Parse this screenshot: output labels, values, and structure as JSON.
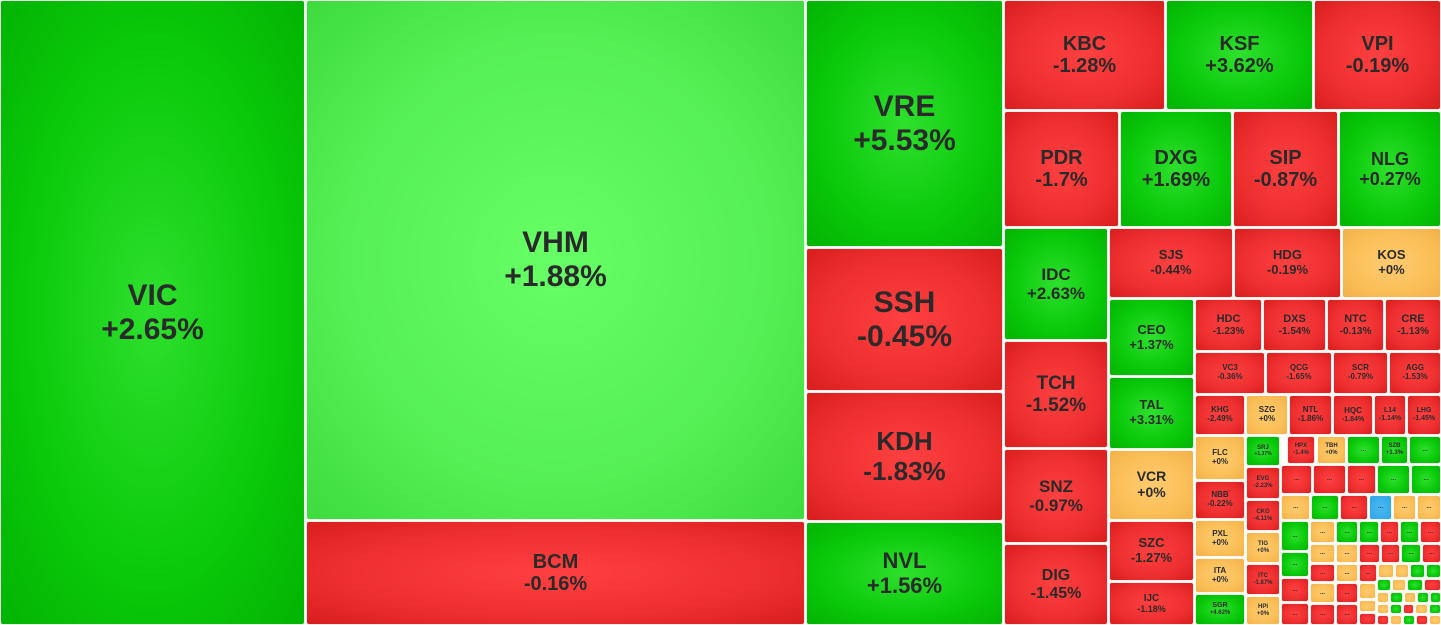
{
  "chart_data": {
    "type": "treemap",
    "colors": {
      "up": "#0ac90a",
      "up_light": "#55f055",
      "down": "#ee2f2f",
      "flat": "#fbbf58",
      "blue": "#2ea6e6"
    },
    "items": [
      {
        "symbol": "VIC",
        "change": "+2.65%",
        "tone": "up"
      },
      {
        "symbol": "VHM",
        "change": "+1.88%",
        "tone": "up2"
      },
      {
        "symbol": "BCM",
        "change": "-0.16%",
        "tone": "down"
      },
      {
        "symbol": "VRE",
        "change": "+5.53%",
        "tone": "up"
      },
      {
        "symbol": "SSH",
        "change": "-0.45%",
        "tone": "down"
      },
      {
        "symbol": "KDH",
        "change": "-1.83%",
        "tone": "down"
      },
      {
        "symbol": "NVL",
        "change": "+1.56%",
        "tone": "up"
      },
      {
        "symbol": "KBC",
        "change": "-1.28%",
        "tone": "down"
      },
      {
        "symbol": "KSF",
        "change": "+3.62%",
        "tone": "up"
      },
      {
        "symbol": "VPI",
        "change": "-0.19%",
        "tone": "down"
      },
      {
        "symbol": "PDR",
        "change": "-1.7%",
        "tone": "down"
      },
      {
        "symbol": "DXG",
        "change": "+1.69%",
        "tone": "up"
      },
      {
        "symbol": "SIP",
        "change": "-0.87%",
        "tone": "down"
      },
      {
        "symbol": "NLG",
        "change": "+0.27%",
        "tone": "up"
      },
      {
        "symbol": "IDC",
        "change": "+2.63%",
        "tone": "up"
      },
      {
        "symbol": "SJS",
        "change": "-0.44%",
        "tone": "down"
      },
      {
        "symbol": "HDG",
        "change": "-0.19%",
        "tone": "down"
      },
      {
        "symbol": "KOS",
        "change": "+0%",
        "tone": "flat"
      },
      {
        "symbol": "TCH",
        "change": "-1.52%",
        "tone": "down"
      },
      {
        "symbol": "CEO",
        "change": "+1.37%",
        "tone": "up"
      },
      {
        "symbol": "HDC",
        "change": "-1.23%",
        "tone": "down"
      },
      {
        "symbol": "DXS",
        "change": "-1.54%",
        "tone": "down"
      },
      {
        "symbol": "NTC",
        "change": "-0.13%",
        "tone": "down"
      },
      {
        "symbol": "CRE",
        "change": "-1.13%",
        "tone": "down"
      },
      {
        "symbol": "VC3",
        "change": "-0.36%",
        "tone": "down"
      },
      {
        "symbol": "QCG",
        "change": "-1.65%",
        "tone": "down"
      },
      {
        "symbol": "SCR",
        "change": "-0.79%",
        "tone": "down"
      },
      {
        "symbol": "AGG",
        "change": "-1.53%",
        "tone": "down"
      },
      {
        "symbol": "TAL",
        "change": "+3.31%",
        "tone": "up"
      },
      {
        "symbol": "SNZ",
        "change": "-0.97%",
        "tone": "down"
      },
      {
        "symbol": "KHG",
        "change": "-2.49%",
        "tone": "down"
      },
      {
        "symbol": "SZG",
        "change": "+0%",
        "tone": "flat"
      },
      {
        "symbol": "NTL",
        "change": "-1.86%",
        "tone": "down"
      },
      {
        "symbol": "HQC",
        "change": "-1.84%",
        "tone": "down"
      },
      {
        "symbol": "L14",
        "change": "-1.14%",
        "tone": "down"
      },
      {
        "symbol": "LHG",
        "change": "-1.45%",
        "tone": "down"
      },
      {
        "symbol": "VCR",
        "change": "+0%",
        "tone": "flat"
      },
      {
        "symbol": "FLC",
        "change": "+0%",
        "tone": "flat"
      },
      {
        "symbol": "SRJ",
        "change": "+1.37%",
        "tone": "up"
      },
      {
        "symbol": "HPX",
        "change": "-1.4%",
        "tone": "down"
      },
      {
        "symbol": "TBH",
        "change": "+0%",
        "tone": "flat"
      },
      {
        "symbol": "SZB",
        "change": "+1.3%",
        "tone": "up"
      },
      {
        "symbol": "NBB",
        "change": "-0.22%",
        "tone": "down"
      },
      {
        "symbol": "EVG",
        "change": "-2.23%",
        "tone": "down"
      },
      {
        "symbol": "CKG",
        "change": "-4.11%",
        "tone": "down"
      },
      {
        "symbol": "DIG",
        "change": "-1.45%",
        "tone": "down"
      },
      {
        "symbol": "SZC",
        "change": "-1.27%",
        "tone": "down"
      },
      {
        "symbol": "PXL",
        "change": "+0%",
        "tone": "flat"
      },
      {
        "symbol": "TIG",
        "change": "+0%",
        "tone": "flat"
      },
      {
        "symbol": "ITA",
        "change": "+0%",
        "tone": "flat"
      },
      {
        "symbol": "ITC",
        "change": "-1.87%",
        "tone": "down"
      },
      {
        "symbol": "IJC",
        "change": "-1.18%",
        "tone": "down"
      },
      {
        "symbol": "SGR",
        "change": "+4.62%",
        "tone": "up"
      },
      {
        "symbol": "HPI",
        "change": "+0%",
        "tone": "flat"
      }
    ],
    "small_cells": {
      "label": "...",
      "tones": [
        "up",
        "down",
        "flat",
        "blue"
      ]
    }
  }
}
